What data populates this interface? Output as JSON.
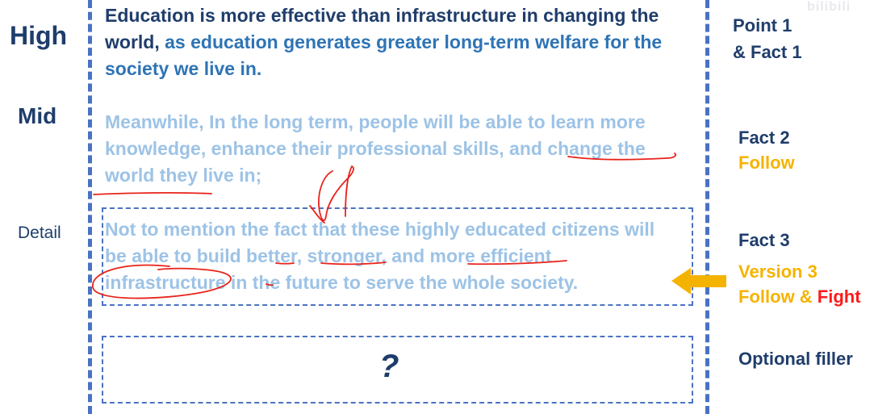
{
  "levels": {
    "high": "High",
    "mid": "Mid",
    "detail": "Detail"
  },
  "paragraphs": {
    "p1_line1": "Education is more effective than infrastructure in changing the",
    "p1_line2_a": "world, ",
    "p1_line2_b": "as education generates greater long-term welfare for the",
    "p1_line3": "society we live in.",
    "p2_line1": "Meanwhile, In the long term, people will be able to learn more",
    "p2_line2": "knowledge, enhance their professional skills, and change the",
    "p2_line3": "world they live in;",
    "p3_line1": "Not to mention the fact that these highly educated citizens will",
    "p3_line2": "be able to build better, stronger, and more efficient",
    "p3_line3": "infrastructure in the future to serve the whole society.",
    "filler_mark": "?"
  },
  "right_labels": {
    "point1": "Point 1",
    "fact1": "& Fact 1",
    "fact2": "Fact 2",
    "follow": "Follow",
    "fact3": "Fact 3",
    "version3": "Version 3",
    "follow_and": "Follow & ",
    "fight": "Fight",
    "optional_filler": "Optional filler"
  },
  "watermark": "bilibili",
  "colors": {
    "dark_navy": "#1f3d6b",
    "accent_blue": "#2e74b5",
    "light_blue": "#9dc3e6",
    "dashed_blue": "#4a72c4",
    "orange": "#f5b301",
    "red": "#ff1a1a"
  }
}
